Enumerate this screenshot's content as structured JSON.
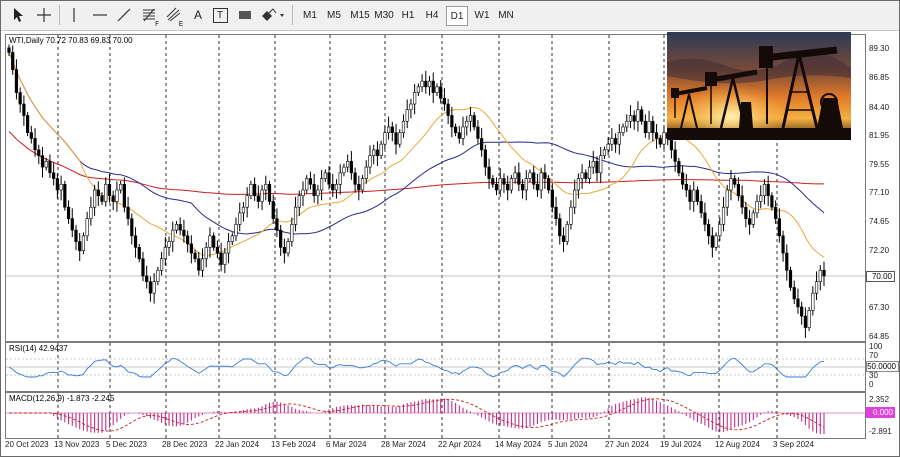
{
  "toolbar": {
    "tools": [
      {
        "name": "cursor-icon"
      },
      {
        "name": "crosshair-icon"
      },
      {
        "name": "vertical-line-icon"
      },
      {
        "name": "horizontal-line-icon"
      },
      {
        "name": "trendline-icon"
      },
      {
        "name": "fibonacci-icon",
        "sub": "F"
      },
      {
        "name": "pitchfork-icon",
        "sub": "E"
      },
      {
        "name": "text-icon",
        "label": "A"
      },
      {
        "name": "text-label-icon",
        "label": "T"
      },
      {
        "name": "rectangle-label-icon"
      },
      {
        "name": "shapes-icon"
      }
    ],
    "timeframes": [
      "M1",
      "M5",
      "M15",
      "M30",
      "H1",
      "H4",
      "D1",
      "W1",
      "MN"
    ],
    "active_timeframe": "D1"
  },
  "main_pane": {
    "header": "WTI,Daily  70.72 70.83 69.83 70.00",
    "price_scale": [
      "89.30",
      "86.85",
      "84.40",
      "81.95",
      "79.55",
      "77.10",
      "74.65",
      "72.20",
      "67.30",
      "64.85"
    ],
    "last_price": "70.00"
  },
  "rsi_pane": {
    "header": "RSI(14) 42.9437",
    "scale": [
      "100",
      "70",
      "30",
      "0"
    ],
    "level_label": "50.0000"
  },
  "macd_pane": {
    "header": "MACD(12,26,9) -1.873 -2.245",
    "scale": [
      "2.352",
      "-2.891"
    ],
    "zero_label": "0.000"
  },
  "time_axis": [
    "20 Oct 2023",
    "13 Nov 2023",
    "5 Dec 2023",
    "28 Dec 2023",
    "22 Jan 2024",
    "13 Feb 2024",
    "6 Mar 2024",
    "28 Mar 2024",
    "22 Apr 2024",
    "14 May 2024",
    "5 Jun 2024",
    "27 Jun 2024",
    "19 Jul 2024",
    "12 Aug 2024",
    "3 Sep 2024"
  ],
  "colors": {
    "up_candle": "#ffffff",
    "down_candle": "#000000",
    "ma_fast": "#e8a838",
    "ma_mid": "#2a2a8a",
    "ma_slow": "#c81e1e",
    "rsi_line": "#3a7bd5",
    "macd_hist": "#c0308a",
    "macd_signal": "#c81e1e",
    "last_price_bg": "#ffffff",
    "zero_bg": "#e040e0"
  },
  "chart_data": {
    "type": "candlestick",
    "instrument": "WTI",
    "timeframe": "Daily",
    "ylim": [
      64.85,
      90.5
    ],
    "closes": [
      89.5,
      88.0,
      86.0,
      85.0,
      84.0,
      82.5,
      82.0,
      81.0,
      80.5,
      79.5,
      80.0,
      79.0,
      78.5,
      77.5,
      78.0,
      76.0,
      75.0,
      74.0,
      73.0,
      72.2,
      73.5,
      75.0,
      76.0,
      77.5,
      77.0,
      76.5,
      78.0,
      77.0,
      76.5,
      77.5,
      78.0,
      76.0,
      75.0,
      73.5,
      72.5,
      71.5,
      70.0,
      69.5,
      68.5,
      69.5,
      70.5,
      71.5,
      72.5,
      73.0,
      74.0,
      74.5,
      74.0,
      73.5,
      72.8,
      72.0,
      71.5,
      70.5,
      71.5,
      72.5,
      73.5,
      72.5,
      72.0,
      71.0,
      72.0,
      73.0,
      73.5,
      74.5,
      75.5,
      76.0,
      77.0,
      78.0,
      77.0,
      76.5,
      77.5,
      78.0,
      76.5,
      75.0,
      74.0,
      72.5,
      72.0,
      73.0,
      74.5,
      76.0,
      77.0,
      77.5,
      78.5,
      78.0,
      77.0,
      77.5,
      78.5,
      79.0,
      78.0,
      77.5,
      78.0,
      79.0,
      79.5,
      80.0,
      79.0,
      78.0,
      77.5,
      78.5,
      79.5,
      80.5,
      81.0,
      80.5,
      81.5,
      82.5,
      83.0,
      82.5,
      81.5,
      82.5,
      83.5,
      84.5,
      85.0,
      86.0,
      86.5,
      87.0,
      86.5,
      87.0,
      86.0,
      86.5,
      85.5,
      85.0,
      84.0,
      83.0,
      82.5,
      82.0,
      83.0,
      83.5,
      84.0,
      83.0,
      82.0,
      81.0,
      79.5,
      78.5,
      78.0,
      77.5,
      78.5,
      78.0,
      77.5,
      78.5,
      79.0,
      78.0,
      77.5,
      78.5,
      79.0,
      78.0,
      77.5,
      79.0,
      78.5,
      77.5,
      76.0,
      75.0,
      73.5,
      73.0,
      74.5,
      76.0,
      77.5,
      78.5,
      79.0,
      78.5,
      79.5,
      80.0,
      79.0,
      80.5,
      81.0,
      81.5,
      82.0,
      81.5,
      82.5,
      83.0,
      83.5,
      84.0,
      83.5,
      84.5,
      83.5,
      82.5,
      83.5,
      82.5,
      82.0,
      81.5,
      82.5,
      82.0,
      81.0,
      80.0,
      79.0,
      78.0,
      77.5,
      76.5,
      77.5,
      76.5,
      75.5,
      74.5,
      73.5,
      72.5,
      73.5,
      74.5,
      76.0,
      77.5,
      78.5,
      78.0,
      77.0,
      76.0,
      75.0,
      74.5,
      75.5,
      76.5,
      77.0,
      78.0,
      77.0,
      76.0,
      75.0,
      73.5,
      72.0,
      70.5,
      69.0,
      68.0,
      67.3,
      66.5,
      65.5,
      67.0,
      68.5,
      69.5,
      70.5,
      70.0
    ]
  }
}
